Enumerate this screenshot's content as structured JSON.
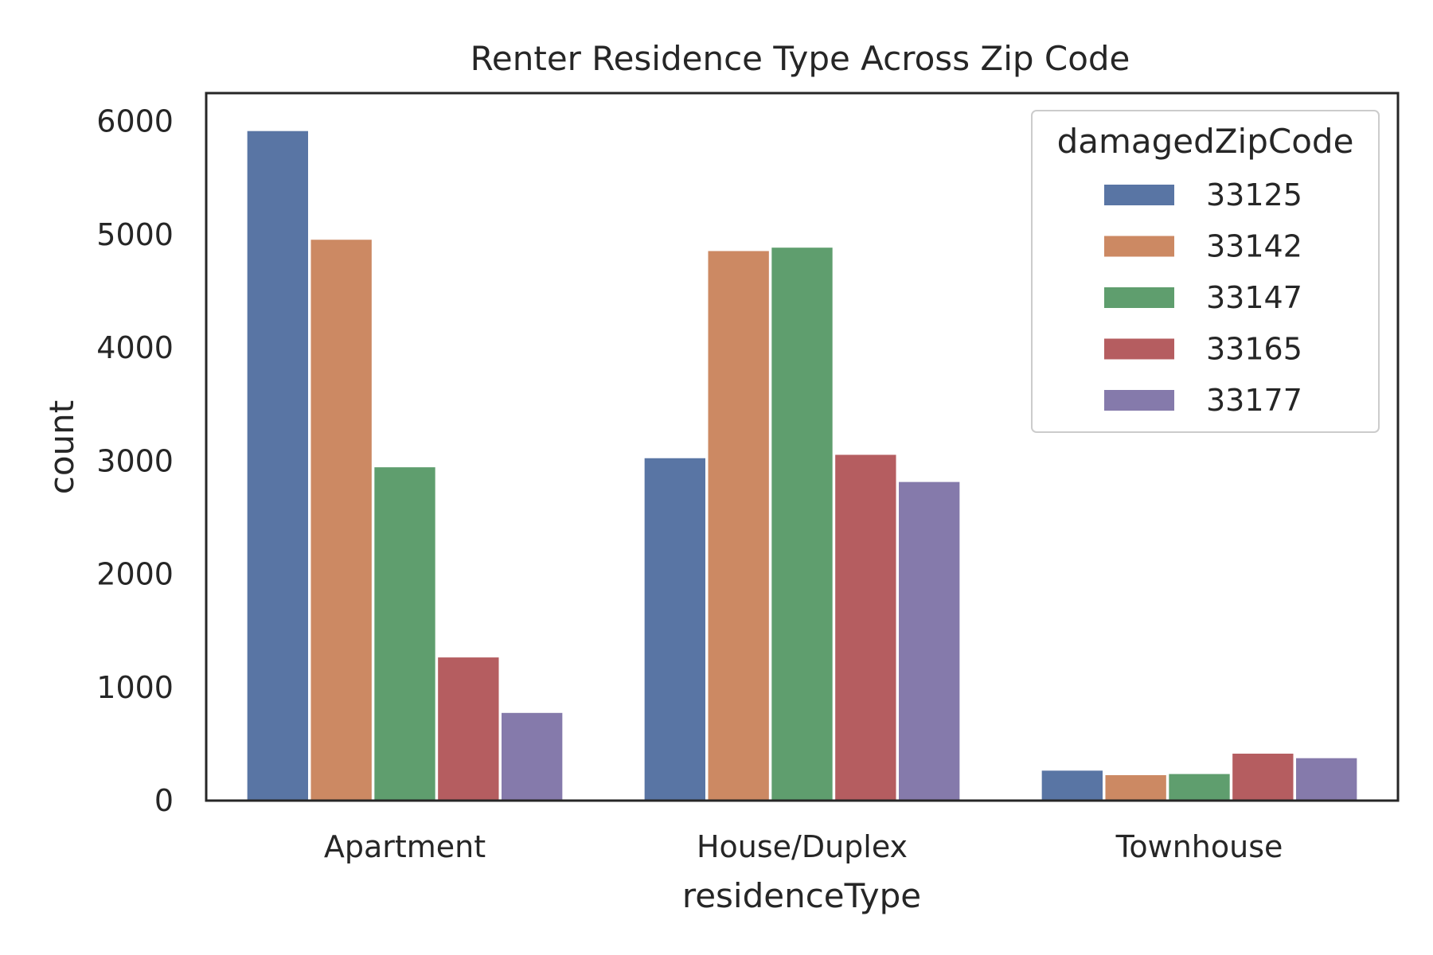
{
  "chart_data": {
    "type": "bar",
    "title": "Renter Residence Type Across Zip Code",
    "xlabel": "residenceType",
    "ylabel": "count",
    "categories": [
      "Apartment",
      "House/Duplex",
      "Townhouse"
    ],
    "ylim": [
      0,
      6250
    ],
    "yticks": [
      "0",
      "1000",
      "2000",
      "3000",
      "4000",
      "5000",
      "6000"
    ],
    "grid": false,
    "legend": {
      "title": "damagedZipCode",
      "placement": "top-right"
    },
    "series": [
      {
        "name": "33125",
        "color": "#5975a4",
        "values": [
          5920,
          3030,
          270
        ]
      },
      {
        "name": "33142",
        "color": "#cc8963",
        "values": [
          4960,
          4860,
          230
        ]
      },
      {
        "name": "33147",
        "color": "#5f9e6e",
        "values": [
          2950,
          4890,
          240
        ]
      },
      {
        "name": "33165",
        "color": "#b55d60",
        "values": [
          1270,
          3060,
          420
        ]
      },
      {
        "name": "33177",
        "color": "#857aab",
        "values": [
          780,
          2820,
          380
        ]
      }
    ]
  }
}
